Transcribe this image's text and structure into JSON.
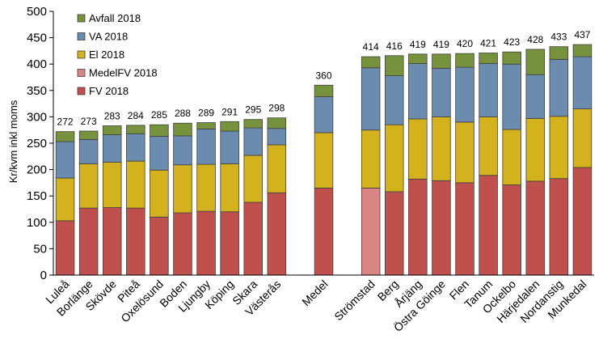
{
  "chart_data": {
    "type": "bar",
    "stacked": true,
    "title": "",
    "xlabel": "",
    "ylabel": "Kr/kvm inkl moms",
    "ylim": [
      0,
      500
    ],
    "yticks": [
      0,
      50,
      100,
      150,
      200,
      250,
      300,
      350,
      400,
      450,
      500
    ],
    "grid": false,
    "legend_position": "top-left",
    "categories": [
      "Luleå",
      "Borlänge",
      "Skövde",
      "Piteå",
      "Oxelösund",
      "Boden",
      "Ljungby",
      "Köping",
      "Skara",
      "Västerås",
      "",
      "Medel",
      "",
      "Strömstad",
      "Berg",
      "Årjäng",
      "Östra Göinge",
      "Flen",
      "Tanum",
      "Ockelbo",
      "Härjedalen",
      "Nordanstig",
      "Munkedal"
    ],
    "totals": [
      "272",
      "273",
      "283",
      "284",
      "285",
      "288",
      "289",
      "291",
      "295",
      "298",
      "",
      "360",
      "",
      "414",
      "416",
      "419",
      "419",
      "420",
      "421",
      "423",
      "428",
      "433",
      "437"
    ],
    "series": [
      {
        "name": "FV 2018",
        "color": "#C0504D",
        "values": [
          103,
          127,
          128,
          127,
          110,
          118,
          121,
          120,
          138,
          156,
          null,
          165,
          null,
          null,
          158,
          182,
          179,
          175,
          189,
          171,
          178,
          183,
          204
        ]
      },
      {
        "name": "MedelFV 2018",
        "color": "#D98583",
        "values": [
          null,
          null,
          null,
          null,
          null,
          null,
          null,
          null,
          null,
          null,
          null,
          null,
          null,
          165,
          null,
          null,
          null,
          null,
          null,
          null,
          null,
          null,
          null
        ]
      },
      {
        "name": "El 2018",
        "color": "#D4B21E",
        "values": [
          81,
          84,
          86,
          89,
          89,
          91,
          89,
          91,
          89,
          91,
          null,
          105,
          null,
          110,
          127,
          114,
          121,
          115,
          111,
          105,
          119,
          118,
          111
        ]
      },
      {
        "name": "VA 2018",
        "color": "#6B8CAE",
        "values": [
          69,
          46,
          52,
          52,
          64,
          55,
          67,
          62,
          52,
          31,
          null,
          68,
          null,
          118,
          93,
          105,
          92,
          104,
          101,
          124,
          83,
          108,
          99
        ]
      },
      {
        "name": "Avfall 2018",
        "color": "#76923C",
        "values": [
          19,
          16,
          17,
          16,
          22,
          24,
          12,
          18,
          16,
          20,
          null,
          22,
          null,
          21,
          38,
          18,
          27,
          26,
          20,
          23,
          48,
          24,
          23
        ]
      }
    ],
    "legend": [
      "Avfall 2018",
      "VA 2018",
      "El 2018",
      "MedelFV 2018",
      "FV 2018"
    ]
  }
}
